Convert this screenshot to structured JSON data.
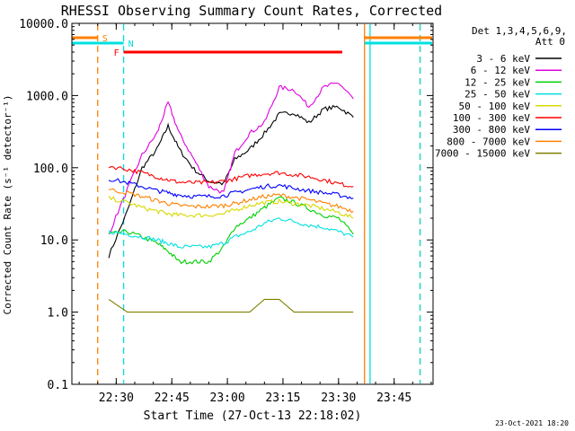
{
  "chart_data": {
    "type": "line",
    "title": "RHESSI Observing Summary Count Rates, Corrected",
    "xlabel": "Start Time (27-Oct-13 22:18:02)",
    "ylabel": "Corrected Count Rate (s⁻¹ detector⁻¹)",
    "y_scale": "log",
    "ylim": [
      0.1,
      10000
    ],
    "xlim": [
      "22:18:02",
      "23:55:30"
    ],
    "x_ticks": [
      "22:30",
      "22:45",
      "23:00",
      "23:15",
      "23:30",
      "23:45"
    ],
    "y_ticks": [
      "0.1",
      "1.0",
      "10.0",
      "100.0",
      "1000.0",
      "10000.0"
    ],
    "grid": false,
    "legend_title": "Det 1,3,4,5,6,9,",
    "legend_subtitle": "Att 0",
    "legend_position": "right",
    "footer_date": "23-Oct-2021 18:20",
    "x": [
      "22:28",
      "22:33",
      "22:37",
      "22:41",
      "22:44",
      "22:47",
      "22:51",
      "22:55",
      "22:59",
      "23:02",
      "23:06",
      "23:10",
      "23:14",
      "23:18",
      "23:22",
      "23:26",
      "23:30",
      "23:34"
    ],
    "series": [
      {
        "name": "3 - 6 keV",
        "color": "#000000",
        "values": [
          6,
          25,
          100,
          180,
          380,
          180,
          95,
          65,
          60,
          130,
          180,
          300,
          550,
          580,
          420,
          650,
          700,
          500
        ]
      },
      {
        "name": "6 - 12 keV",
        "color": "#e000e0",
        "values": [
          12,
          50,
          150,
          300,
          800,
          300,
          130,
          55,
          45,
          160,
          300,
          420,
          1300,
          1200,
          700,
          1300,
          1500,
          900
        ]
      },
      {
        "name": "12 - 25 keV",
        "color": "#00d000",
        "values": [
          12,
          13,
          11,
          9,
          7,
          5,
          5,
          5,
          8,
          15,
          20,
          28,
          38,
          33,
          27,
          22,
          20,
          12
        ]
      },
      {
        "name": "25 - 50 keV",
        "color": "#00e0e0",
        "values": [
          13,
          12,
          11,
          10,
          9,
          8,
          8,
          8,
          9,
          11,
          13,
          17,
          20,
          18,
          16,
          15,
          13,
          11
        ]
      },
      {
        "name": "50 - 100 keV",
        "color": "#d8d800",
        "values": [
          38,
          33,
          28,
          25,
          23,
          22,
          22,
          22,
          23,
          26,
          30,
          33,
          34,
          32,
          30,
          27,
          24,
          20
        ]
      },
      {
        "name": "100 - 300 keV",
        "color": "#ff0000",
        "values": [
          105,
          95,
          85,
          75,
          68,
          63,
          62,
          62,
          65,
          70,
          78,
          83,
          85,
          80,
          75,
          68,
          60,
          55
        ]
      },
      {
        "name": "300 - 800 keV",
        "color": "#0000ff",
        "values": [
          70,
          62,
          55,
          48,
          45,
          42,
          40,
          40,
          41,
          45,
          50,
          55,
          57,
          52,
          48,
          45,
          42,
          38
        ]
      },
      {
        "name": "800 - 7000 keV",
        "color": "#ff8000",
        "values": [
          50,
          45,
          40,
          35,
          32,
          30,
          29,
          29,
          30,
          32,
          36,
          40,
          42,
          39,
          36,
          32,
          29,
          25
        ]
      },
      {
        "name": "7000 - 15000 keV",
        "color": "#808000",
        "values": [
          1.5,
          1.0,
          1.0,
          1.0,
          1.0,
          1.0,
          1.0,
          1.0,
          1.0,
          1.0,
          1.0,
          1.5,
          1.5,
          1.0,
          1.0,
          1.0,
          1.0,
          1.0
        ]
      }
    ],
    "annotations": [
      {
        "label": "S",
        "color": "#ff8000",
        "start": "22:18:02",
        "end": "22:25:00"
      },
      {
        "label": "N",
        "color": "#00e0e0",
        "start": "22:18:02",
        "end": "22:32:00"
      },
      {
        "label": "F",
        "color": "#ff0000",
        "start": "22:32:00",
        "end": "23:31:00"
      }
    ],
    "vertical_markers": [
      {
        "time": "22:25:00",
        "color": "#ff8000",
        "style": "dashed"
      },
      {
        "time": "22:32:00",
        "color": "#00e0e0",
        "style": "dashed"
      },
      {
        "time": "23:37:00",
        "color": "#ff8000",
        "style": "solid"
      },
      {
        "time": "23:38:30",
        "color": "#00e0e0",
        "style": "solid"
      },
      {
        "time": "23:52:00",
        "color": "#ff8000",
        "style": "dashed"
      },
      {
        "time": "23:52:00",
        "color": "#00e0e0",
        "style": "dashed"
      }
    ]
  }
}
